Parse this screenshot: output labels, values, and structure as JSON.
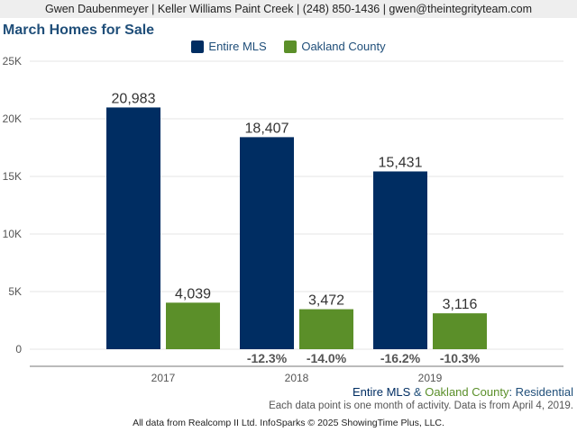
{
  "banner": {
    "text": "Gwen Daubenmeyer | Keller Williams Paint Creek | (248) 850-1436 | gwen@theintegrityteam.com"
  },
  "colors": {
    "entire_mls": "#002d62",
    "oakland_county": "#5b8f29",
    "title": "#1f4e79",
    "grid": "#e6e6e6",
    "axis": "#777777"
  },
  "chart_data": {
    "type": "bar",
    "title": "March Homes for Sale",
    "xlabel": "",
    "ylabel": "",
    "ylim": [
      0,
      25000
    ],
    "yticks": [
      0,
      5000,
      10000,
      15000,
      20000,
      25000
    ],
    "ytick_labels": [
      "0",
      "5K",
      "10K",
      "15K",
      "20K",
      "25K"
    ],
    "grid": true,
    "legend_position": "top-center",
    "categories": [
      "2017",
      "2018",
      "2019"
    ],
    "series": [
      {
        "name": "Entire MLS",
        "values": [
          20983,
          18407,
          15431
        ],
        "value_labels": [
          "20,983",
          "18,407",
          "15,431"
        ],
        "changes": [
          "",
          "-12.3%",
          "-16.2%"
        ]
      },
      {
        "name": "Oakland County",
        "values": [
          4039,
          3472,
          3116
        ],
        "value_labels": [
          "4,039",
          "3,472",
          "3,116"
        ],
        "changes": [
          "",
          "-14.0%",
          "-10.3%"
        ]
      }
    ]
  },
  "footer": {
    "series_a": "Entire MLS",
    "ampersand": " & ",
    "series_b": "Oakland County",
    "property_type": ": Residential",
    "note": "Each data point is one month of activity. Data is from April 4, 2019.",
    "credit": "All data from Realcomp II Ltd. InfoSparks © 2025 ShowingTime Plus, LLC."
  }
}
